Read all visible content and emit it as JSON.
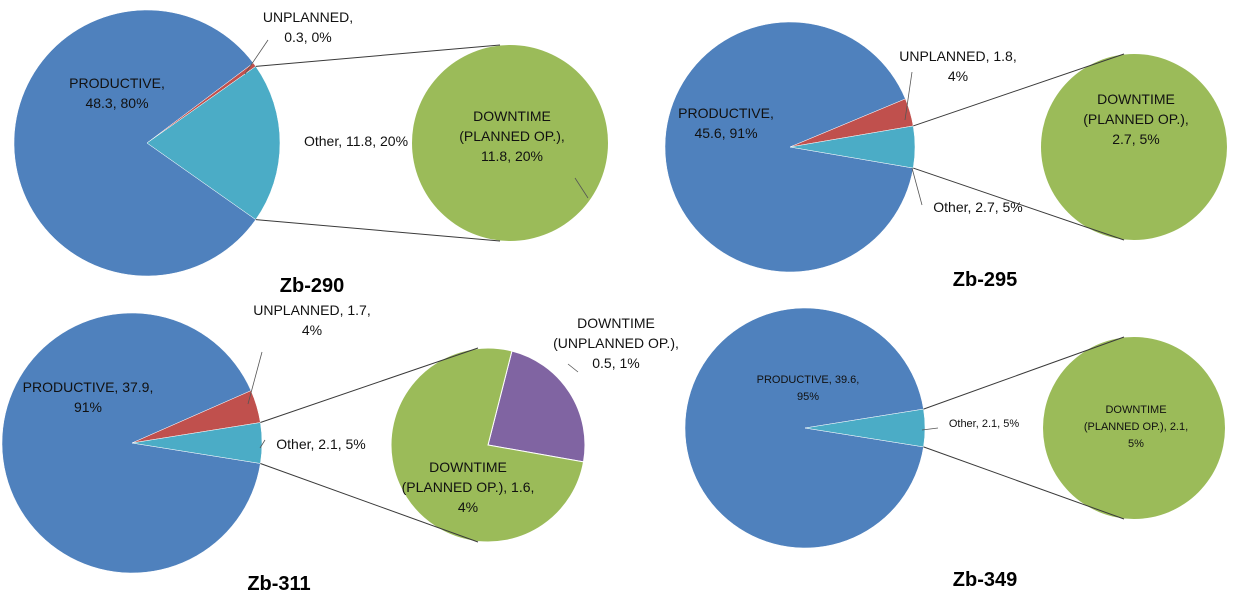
{
  "colors": {
    "productive": "#4F81BD",
    "unplanned": "#C0504D",
    "other": "#4BACC6",
    "planned": "#9BBB59",
    "unplanned_op": "#8064A2",
    "connector": "#3a3a3a"
  },
  "chart_data": [
    {
      "type": "pie",
      "title": "Zb-290",
      "main_slices": [
        {
          "name": "PRODUCTIVE",
          "value": 48.3,
          "percent": "80%",
          "label_lines": [
            "PRODUCTIVE,",
            "48.3, 80%"
          ]
        },
        {
          "name": "UNPLANNED",
          "value": 0.3,
          "percent": "0%",
          "label_lines": [
            "UNPLANNED,",
            "0.3, 0%"
          ]
        },
        {
          "name": "Other",
          "value": 11.8,
          "percent": "20%",
          "label_lines": [
            "Other, 11.8, 20%"
          ]
        }
      ],
      "secondary_slices": [
        {
          "name": "DOWNTIME (PLANNED OP.)",
          "value": 11.8,
          "percent": "20%",
          "label_lines": [
            "DOWNTIME",
            "(PLANNED OP.),",
            "11.8, 20%"
          ]
        }
      ]
    },
    {
      "type": "pie",
      "title": "Zb-295",
      "main_slices": [
        {
          "name": "PRODUCTIVE",
          "value": 45.6,
          "percent": "91%",
          "label_lines": [
            "PRODUCTIVE,",
            "45.6, 91%"
          ]
        },
        {
          "name": "UNPLANNED",
          "value": 1.8,
          "percent": "4%",
          "label_lines": [
            "UNPLANNED, 1.8,",
            "4%"
          ]
        },
        {
          "name": "Other",
          "value": 2.7,
          "percent": "5%",
          "label_lines": [
            "Other, 2.7, 5%"
          ]
        }
      ],
      "secondary_slices": [
        {
          "name": "DOWNTIME (PLANNED OP.)",
          "value": 2.7,
          "percent": "5%",
          "label_lines": [
            "DOWNTIME",
            "(PLANNED OP.),",
            "2.7, 5%"
          ]
        }
      ]
    },
    {
      "type": "pie",
      "title": "Zb-311",
      "main_slices": [
        {
          "name": "PRODUCTIVE",
          "value": 37.9,
          "percent": "91%",
          "label_lines": [
            "PRODUCTIVE, 37.9,",
            "91%"
          ]
        },
        {
          "name": "UNPLANNED",
          "value": 1.7,
          "percent": "4%",
          "label_lines": [
            "UNPLANNED, 1.7,",
            "4%"
          ]
        },
        {
          "name": "Other",
          "value": 2.1,
          "percent": "5%",
          "label_lines": [
            "Other, 2.1, 5%"
          ]
        }
      ],
      "secondary_slices": [
        {
          "name": "DOWNTIME (PLANNED OP.)",
          "value": 1.6,
          "percent": "4%",
          "label_lines": [
            "DOWNTIME",
            "(PLANNED OP.), 1.6,",
            "4%"
          ]
        },
        {
          "name": "DOWNTIME (UNPLANNED OP.)",
          "value": 0.5,
          "percent": "1%",
          "label_lines": [
            "DOWNTIME",
            "(UNPLANNED OP.),",
            "0.5, 1%"
          ]
        }
      ]
    },
    {
      "type": "pie",
      "title": "Zb-349",
      "main_slices": [
        {
          "name": "PRODUCTIVE",
          "value": 39.6,
          "percent": "95%",
          "label_lines": [
            "PRODUCTIVE, 39.6,",
            "95%"
          ]
        },
        {
          "name": "Other",
          "value": 2.1,
          "percent": "5%",
          "label_lines": [
            "Other, 2.1, 5%"
          ]
        }
      ],
      "secondary_slices": [
        {
          "name": "DOWNTIME (PLANNED OP.)",
          "value": 2.1,
          "percent": "5%",
          "label_lines": [
            "DOWNTIME",
            "(PLANNED OP.), 2.1,",
            "5%"
          ]
        }
      ]
    }
  ]
}
